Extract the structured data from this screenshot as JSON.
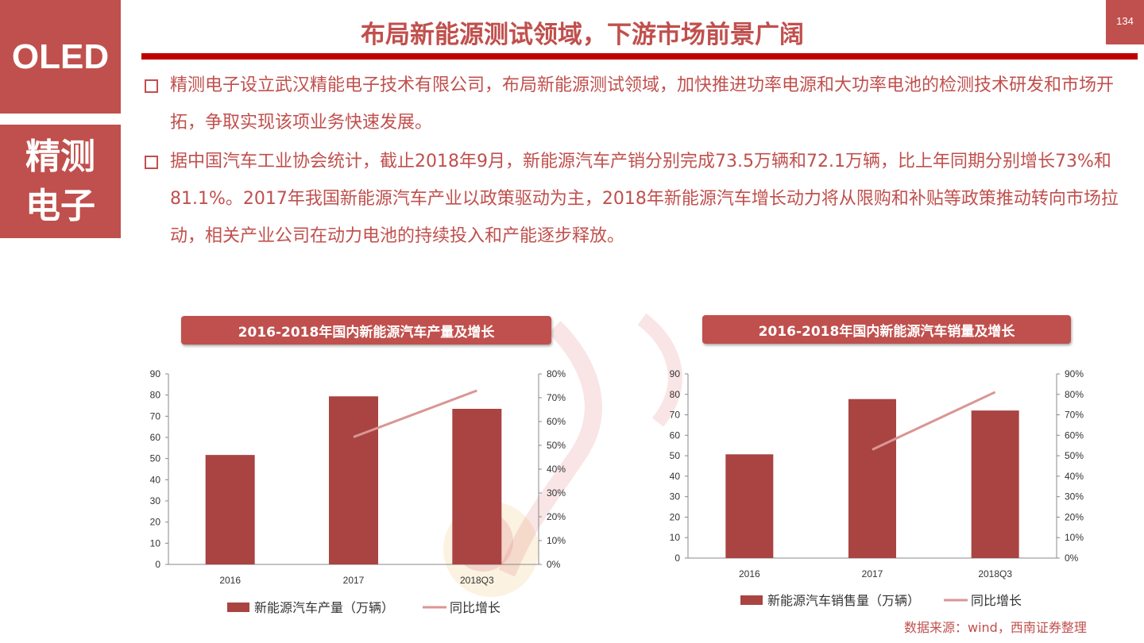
{
  "sidebar": {
    "top_label": "OLED",
    "bottom_line1": "精测",
    "bottom_line2": "电子"
  },
  "page_number": "134",
  "slide_title": "布局新能源测试领域，下游市场前景广阔",
  "bullets": [
    "精测电子设立武汉精能电子技术有限公司，布局新能源测试领域，加快推进功率电源和大功率电池的检测技术研发和市场开拓，争取实现该项业务快速发展。",
    "据中国汽车工业协会统计，截止2018年9月，新能源汽车产销分别完成73.5万辆和72.1万辆，比上年同期分别增长73%和81.1%。2017年我国新能源汽车产业以政策驱动为主，2018年新能源汽车增长动力将从限购和补贴等政策推动转向市场拉动，相关产业公司在动力电池的持续投入和产能逐步释放。"
  ],
  "source_note": "数据来源：wind，西南证券整理",
  "colors": {
    "accent": "#c0504d",
    "bar": "#a94442",
    "line": "#d99694",
    "rule": "#c00000"
  },
  "icons": {
    "bullet": "hollow-square-icon",
    "watermark": "company-seal-watermark"
  },
  "chart_data": [
    {
      "type": "bar",
      "title": "2016-2018年国内新能源汽车产量及增长",
      "categories": [
        "2016",
        "2017",
        "2018Q3"
      ],
      "series": [
        {
          "name": "新能源汽车产量（万辆）",
          "type": "bar",
          "axis": "left",
          "values": [
            51.7,
            79.4,
            73.5
          ]
        },
        {
          "name": "同比增长",
          "type": "line",
          "axis": "right",
          "values": [
            null,
            0.535,
            0.73
          ]
        }
      ],
      "ylim": [
        0,
        90
      ],
      "y_ticks": [
        "0",
        "10",
        "20",
        "30",
        "40",
        "50",
        "60",
        "70",
        "80",
        "90"
      ],
      "y2lim": [
        0,
        0.8
      ],
      "y2_ticks": [
        "0%",
        "10%",
        "20%",
        "30%",
        "40%",
        "50%",
        "60%",
        "70%",
        "80%"
      ],
      "legend_position": "bottom"
    },
    {
      "type": "bar",
      "title": "2016-2018年国内新能源汽车销量及增长",
      "categories": [
        "2016",
        "2017",
        "2018Q3"
      ],
      "series": [
        {
          "name": "新能源汽车销售量（万辆）",
          "type": "bar",
          "axis": "left",
          "values": [
            50.7,
            77.7,
            72.1
          ]
        },
        {
          "name": "同比增长",
          "type": "line",
          "axis": "right",
          "values": [
            null,
            0.53,
            0.811
          ]
        }
      ],
      "ylim": [
        0,
        90
      ],
      "y_ticks": [
        "0",
        "10",
        "20",
        "30",
        "40",
        "50",
        "60",
        "70",
        "80",
        "90"
      ],
      "y2lim": [
        0,
        0.9
      ],
      "y2_ticks": [
        "0%",
        "10%",
        "20%",
        "30%",
        "40%",
        "50%",
        "60%",
        "70%",
        "80%",
        "90%"
      ],
      "legend_position": "bottom"
    }
  ]
}
